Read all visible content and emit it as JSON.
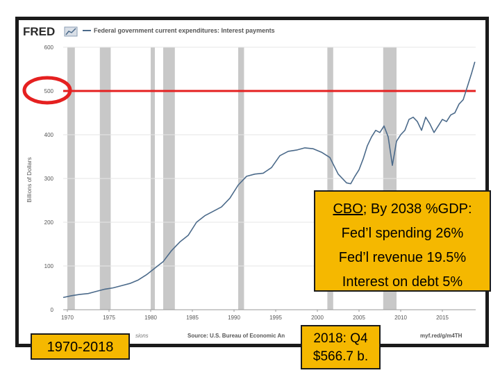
{
  "header": {
    "logo": "FRED",
    "series_title": "Federal government current expenditures: Interest payments"
  },
  "footer": {
    "source": "Source: U.S. Bureau of Economic An",
    "shade_note": "sions",
    "link": "myf.red/g/m4TH"
  },
  "callouts": {
    "cbo": {
      "title_link": "CBO",
      "title_rest": "; By 2038 %GDP:",
      "lines": [
        "Fed’l spending  26%",
        "Fed’l revenue  19.5%",
        "Interest on debt  5%"
      ]
    },
    "range": "1970-2018",
    "latest_line1": "2018: Q4",
    "latest_line2": "$566.7 b."
  },
  "colors": {
    "series": "#4b6a8a",
    "recession": "#c8c8c8",
    "marker": "#e52020",
    "callout": "#f5b800",
    "frame": "#1a1a1a"
  },
  "chart_data": {
    "type": "line",
    "ylabel": "Billions of Dollars",
    "xlim": [
      1969.5,
      2019
    ],
    "ylim": [
      0,
      600
    ],
    "y_ticks": [
      0,
      100,
      200,
      300,
      400,
      500,
      600
    ],
    "x_ticks": [
      1970,
      1975,
      1980,
      1985,
      1990,
      1995,
      2000,
      2005,
      2010,
      2015
    ],
    "reference_line": 500,
    "recessions": [
      [
        1970.0,
        1970.9
      ],
      [
        1973.9,
        1975.2
      ],
      [
        1980.0,
        1980.5
      ],
      [
        1981.5,
        1982.9
      ],
      [
        1990.5,
        1991.2
      ],
      [
        2001.2,
        2001.9
      ],
      [
        2007.9,
        2009.5
      ]
    ],
    "series": [
      {
        "x": [
          1969.5,
          1970.5,
          1971.5,
          1972.5,
          1973.5,
          1974.5,
          1975.5,
          1976.5,
          1977.5,
          1978.5,
          1979.5,
          1980.5,
          1981.5,
          1982.5,
          1983.5,
          1984.5,
          1985.5,
          1986.5,
          1987.5,
          1988.5,
          1989.5,
          1990.5,
          1991.5,
          1992.5,
          1993.5,
          1994.5,
          1995.5,
          1996.5,
          1997.5,
          1998.5,
          1999.5,
          2000.5,
          2001.5,
          2002.5,
          2003.5,
          2004.0,
          2004.5,
          2005.0,
          2005.5,
          2006.0,
          2006.5,
          2007.0,
          2007.5,
          2008.0,
          2008.5,
          2009.0,
          2009.5,
          2010.0,
          2010.5,
          2011.0,
          2011.5,
          2012.0,
          2012.5,
          2013.0,
          2013.5,
          2014.0,
          2014.5,
          2015.0,
          2015.5,
          2016.0,
          2016.5,
          2017.0,
          2017.5,
          2018.0,
          2018.5,
          2018.9
        ],
        "values": [
          28,
          32,
          35,
          37,
          42,
          47,
          50,
          55,
          60,
          68,
          80,
          95,
          110,
          135,
          155,
          170,
          200,
          215,
          225,
          235,
          255,
          285,
          305,
          310,
          312,
          325,
          352,
          362,
          365,
          370,
          368,
          360,
          348,
          310,
          290,
          288,
          305,
          320,
          345,
          375,
          395,
          410,
          405,
          420,
          395,
          330,
          385,
          400,
          410,
          435,
          440,
          430,
          410,
          440,
          425,
          405,
          420,
          435,
          430,
          445,
          450,
          470,
          480,
          510,
          540,
          566.7
        ]
      }
    ]
  }
}
